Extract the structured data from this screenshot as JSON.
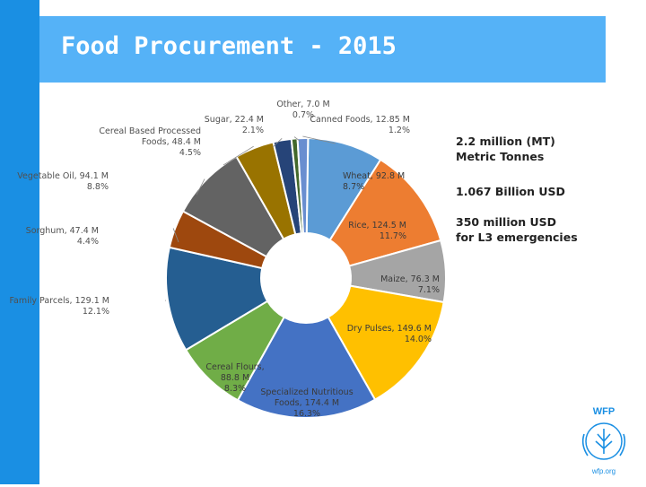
{
  "slide": {
    "title": "Food Procurement - 2015"
  },
  "stats": [
    [
      "2.2 million (MT)",
      "Metric Tonnes"
    ],
    [
      "1.067 Billion USD"
    ],
    [
      "350 million USD",
      "for L3 emergencies"
    ]
  ],
  "logo": {
    "name": "WFP",
    "url": "wfp.org"
  },
  "colors": {
    "leftbar": "#1a8fe3",
    "titlebar": "#55b2f7"
  },
  "chart_data": {
    "type": "pie",
    "donut": true,
    "slices": [
      {
        "name": "Wheat",
        "value_label": "92.8 M",
        "percent": 8.7,
        "color": "#5b9bd5"
      },
      {
        "name": "Rice",
        "value_label": "124.5 M",
        "percent": 11.7,
        "color": "#ed7d31"
      },
      {
        "name": "Maize",
        "value_label": "76.3 M",
        "percent": 7.1,
        "color": "#a5a5a5"
      },
      {
        "name": "Dry Pulses",
        "value_label": "149.6 M",
        "percent": 14.0,
        "color": "#ffc000"
      },
      {
        "name": "Specialized Nutritious Foods",
        "value_label": "174.4 M",
        "percent": 16.3,
        "color": "#4472c4"
      },
      {
        "name": "Cereal Flours",
        "value_label": "88.8 M",
        "percent": 8.3,
        "color": "#70ad47"
      },
      {
        "name": "Family Parcels",
        "value_label": "129.1 M",
        "percent": 12.1,
        "color": "#255e91"
      },
      {
        "name": "Sorghum",
        "value_label": "47.4 M",
        "percent": 4.4,
        "color": "#9e480e"
      },
      {
        "name": "Vegetable Oil",
        "value_label": "94.1 M",
        "percent": 8.8,
        "color": "#636363"
      },
      {
        "name": "Cereal Based Processed Foods",
        "value_label": "48.4 M",
        "percent": 4.5,
        "color": "#997300"
      },
      {
        "name": "Sugar",
        "value_label": "22.4 M",
        "percent": 2.1,
        "color": "#264478"
      },
      {
        "name": "Other",
        "value_label": "7.0 M",
        "percent": 0.7,
        "color": "#43682b"
      },
      {
        "name": "Canned Foods",
        "value_label": "12.85 M",
        "percent": 1.2,
        "color": "#698ed0"
      }
    ],
    "labels": [
      [
        "Wheat, 92.8 M",
        "8.7%"
      ],
      [
        "Rice, 124.5 M",
        "11.7%"
      ],
      [
        "Maize, 76.3 M",
        "7.1%"
      ],
      [
        "Dry Pulses, 149.6 M",
        "14.0%"
      ],
      [
        "Specialized Nutritious",
        "Foods, 174.4 M",
        "16.3%"
      ],
      [
        "Cereal Flours,",
        "88.8 M",
        "8.3%"
      ],
      [
        "Family Parcels, 129.1 M",
        "12.1%"
      ],
      [
        "Sorghum, 47.4 M",
        "4.4%"
      ],
      [
        "Vegetable Oil, 94.1 M",
        "8.8%"
      ],
      [
        "Cereal Based Processed",
        "Foods, 48.4 M",
        "4.5%"
      ],
      [
        "Sugar, 22.4 M",
        "2.1%"
      ],
      [
        "Other, 7.0 M",
        "0.7%"
      ],
      [
        "Canned Foods, 12.85 M",
        "1.2%"
      ]
    ]
  }
}
